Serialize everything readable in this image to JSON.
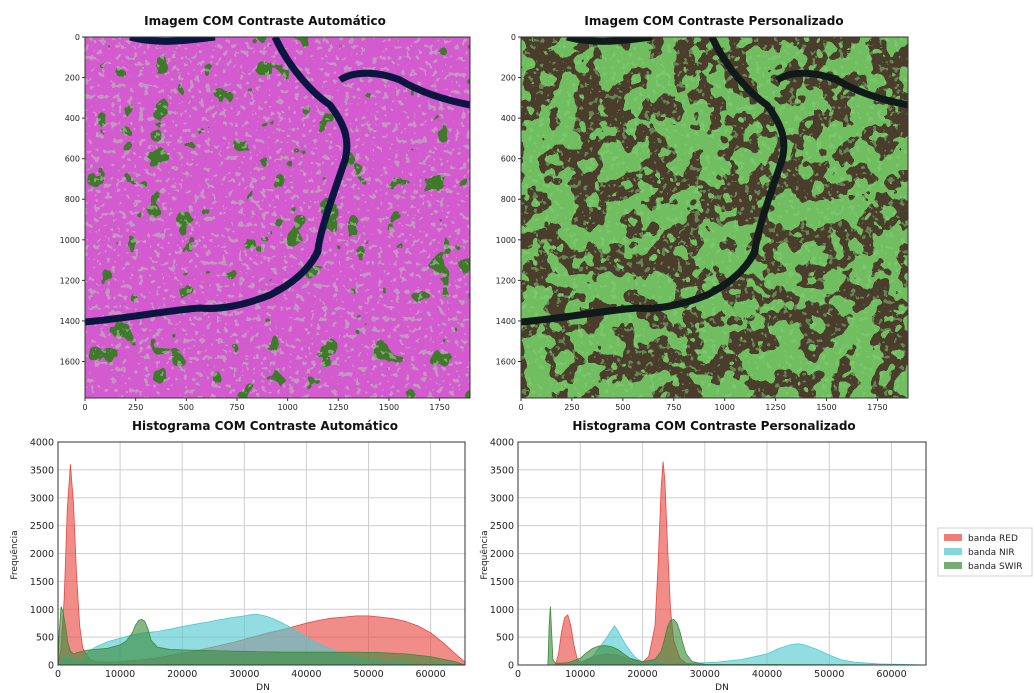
{
  "chart_data": [
    {
      "type": "image",
      "title": "Imagem COM Contraste Automático",
      "xticks": [
        0,
        250,
        500,
        750,
        1000,
        1250,
        1500,
        1750
      ],
      "yticks": [
        0,
        200,
        400,
        600,
        800,
        1000,
        1200,
        1400,
        1600
      ],
      "xlim": [
        0,
        1900
      ],
      "ylim": [
        1780,
        0
      ],
      "palette": {
        "vegetation": "#3f7a2a",
        "bare": "#d45ad0",
        "water": "#0b1640",
        "bright": "#b8c8b4"
      }
    },
    {
      "type": "image",
      "title": "Imagem COM Contraste Personalizado",
      "xticks": [
        0,
        250,
        500,
        750,
        1000,
        1250,
        1500,
        1750
      ],
      "yticks": [
        0,
        200,
        400,
        600,
        800,
        1000,
        1200,
        1400,
        1600
      ],
      "xlim": [
        0,
        1900
      ],
      "ylim": [
        1780,
        0
      ],
      "palette": {
        "vegetation": "#4a3d2c",
        "bare": "#6fbe5e",
        "water": "#101a1a",
        "bright": "#86d07a"
      }
    },
    {
      "type": "area",
      "title": "Histograma COM Contraste Automático",
      "xlabel": "DN",
      "ylabel": "Frequência",
      "xlim": [
        0,
        65535
      ],
      "ylim": [
        0,
        4000
      ],
      "xticks": [
        0,
        10000,
        20000,
        30000,
        40000,
        50000,
        60000
      ],
      "yticks": [
        0,
        500,
        1000,
        1500,
        2000,
        2500,
        3000,
        3500,
        4000
      ],
      "grid": true,
      "series": [
        {
          "name": "banda RED",
          "color": "#e8473f",
          "x": [
            0,
            500,
            1000,
            1500,
            2000,
            2500,
            3000,
            3500,
            4000,
            5000,
            6000,
            8000,
            10000,
            12000,
            14000,
            16000,
            18000,
            20000,
            22000,
            24000,
            26000,
            28000,
            30000,
            32000,
            34000,
            36000,
            38000,
            40000,
            42000,
            44000,
            46000,
            48000,
            50000,
            52000,
            54000,
            56000,
            58000,
            60000,
            62000,
            64000,
            65535
          ],
          "y": [
            0,
            300,
            1200,
            2800,
            3600,
            2900,
            1600,
            700,
            300,
            120,
            60,
            50,
            60,
            80,
            100,
            130,
            170,
            210,
            250,
            300,
            350,
            400,
            460,
            520,
            580,
            630,
            690,
            750,
            800,
            840,
            860,
            880,
            880,
            860,
            830,
            780,
            700,
            580,
            400,
            200,
            50
          ]
        },
        {
          "name": "banda NIR",
          "color": "#4fc8cf",
          "x": [
            0,
            1000,
            2000,
            3000,
            4000,
            5000,
            6000,
            8000,
            10000,
            12000,
            14000,
            16000,
            18000,
            20000,
            22000,
            24000,
            26000,
            28000,
            30000,
            31000,
            32000,
            33000,
            34000,
            36000,
            38000,
            40000,
            42000,
            44000,
            46000,
            48000,
            50000,
            52000,
            56000,
            60000,
            64000,
            65535
          ],
          "y": [
            0,
            150,
            120,
            80,
            100,
            250,
            320,
            420,
            480,
            540,
            580,
            600,
            640,
            690,
            730,
            770,
            810,
            850,
            880,
            900,
            910,
            890,
            860,
            760,
            640,
            500,
            380,
            280,
            200,
            140,
            100,
            70,
            40,
            20,
            10,
            0
          ]
        },
        {
          "name": "banda SWIR",
          "color": "#3a8a3a",
          "x": [
            0,
            200,
            500,
            800,
            1200,
            1600,
            2000,
            2500,
            3000,
            4000,
            5000,
            6000,
            8000,
            10000,
            11000,
            12000,
            12500,
            13000,
            13500,
            14000,
            14500,
            15000,
            16000,
            18000,
            20000,
            24000,
            28000,
            32000,
            36000,
            40000,
            44000,
            48000,
            52000,
            56000,
            60000,
            64000,
            65535
          ],
          "y": [
            0,
            600,
            1050,
            950,
            700,
            400,
            250,
            200,
            220,
            250,
            270,
            280,
            300,
            360,
            430,
            580,
            720,
            800,
            820,
            780,
            640,
            440,
            320,
            280,
            270,
            260,
            250,
            240,
            230,
            230,
            230,
            230,
            220,
            200,
            150,
            60,
            0
          ]
        }
      ]
    },
    {
      "type": "area",
      "title": "Histograma COM Contraste Personalizado",
      "xlabel": "DN",
      "ylabel": "Frequência",
      "xlim": [
        0,
        65535
      ],
      "ylim": [
        0,
        4000
      ],
      "xticks": [
        0,
        10000,
        20000,
        30000,
        40000,
        50000,
        60000
      ],
      "yticks": [
        0,
        500,
        1000,
        1500,
        2000,
        2500,
        3000,
        3500,
        4000
      ],
      "grid": true,
      "legend": "right",
      "series": [
        {
          "name": "banda RED",
          "color": "#e8473f",
          "x": [
            0,
            5000,
            6000,
            6500,
            7000,
            7500,
            8000,
            8500,
            9000,
            9500,
            10000,
            11000,
            12000,
            14000,
            16000,
            18000,
            20000,
            21000,
            22000,
            22500,
            23000,
            23300,
            23600,
            24000,
            24500,
            25000,
            26000,
            27000,
            28000,
            30000,
            65535
          ],
          "y": [
            0,
            0,
            0,
            200,
            600,
            850,
            900,
            700,
            350,
            120,
            40,
            80,
            150,
            200,
            180,
            100,
            50,
            150,
            700,
            1800,
            3200,
            3650,
            3300,
            2200,
            1000,
            450,
            120,
            30,
            0,
            0,
            0
          ]
        },
        {
          "name": "banda NIR",
          "color": "#4fc8cf",
          "x": [
            0,
            8000,
            10000,
            12000,
            13000,
            14000,
            15000,
            15500,
            16000,
            17000,
            18000,
            19000,
            20000,
            24000,
            28000,
            32000,
            36000,
            40000,
            42000,
            44000,
            45000,
            46000,
            48000,
            50000,
            52000,
            54000,
            58000,
            62000,
            65535
          ],
          "y": [
            0,
            0,
            50,
            150,
            300,
            450,
            620,
            700,
            620,
            420,
            250,
            120,
            60,
            30,
            30,
            50,
            100,
            200,
            300,
            370,
            380,
            360,
            280,
            180,
            90,
            50,
            20,
            10,
            0
          ]
        },
        {
          "name": "banda SWIR",
          "color": "#3a8a3a",
          "x": [
            0,
            4800,
            5000,
            5200,
            5400,
            5600,
            6000,
            8000,
            10000,
            11000,
            12000,
            13000,
            14000,
            15000,
            16000,
            17000,
            18000,
            20000,
            22000,
            23000,
            23500,
            24000,
            24500,
            25000,
            25500,
            26000,
            26500,
            27000,
            28000,
            30000,
            65535
          ],
          "y": [
            0,
            0,
            700,
            1050,
            600,
            100,
            30,
            40,
            120,
            220,
            300,
            340,
            350,
            330,
            280,
            200,
            120,
            60,
            100,
            250,
            450,
            680,
            800,
            820,
            760,
            600,
            380,
            200,
            60,
            10,
            0
          ]
        }
      ]
    }
  ]
}
